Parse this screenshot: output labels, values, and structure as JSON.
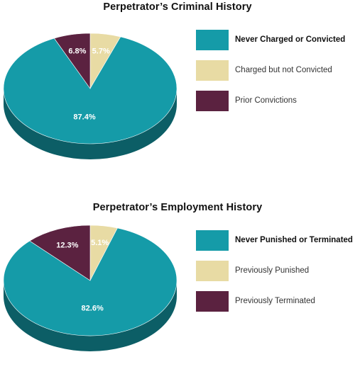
{
  "colors": {
    "teal": "#159ba8",
    "teal_side": "#0c5e66",
    "tan": "#e8dba4",
    "tan_side": "#b8a871",
    "plum": "#5b2240",
    "plum_side": "#3a1328"
  },
  "chart_data": [
    {
      "type": "pie",
      "title": "Perpetrator’s Criminal History",
      "series": [
        {
          "name": "Never Charged or Convicted",
          "value": 87.4,
          "label": "87.4%",
          "color": "#159ba8"
        },
        {
          "name": "Charged but not Convicted",
          "value": 5.7,
          "label": "5.7%",
          "color": "#e8dba4"
        },
        {
          "name": "Prior Convictions",
          "value": 6.8,
          "label": "6.8%",
          "color": "#5b2240"
        }
      ],
      "legend_placement": "right"
    },
    {
      "type": "pie",
      "title": "Perpetrator’s Employment History",
      "series": [
        {
          "name": "Never Punished or Terminated",
          "value": 82.6,
          "label": "82.6%",
          "color": "#159ba8"
        },
        {
          "name": "Previously Punished",
          "value": 5.1,
          "label": "5.1%",
          "color": "#e8dba4"
        },
        {
          "name": "Previously Terminated",
          "value": 12.3,
          "label": "12.3%",
          "color": "#5b2240"
        }
      ],
      "legend_placement": "right"
    }
  ]
}
